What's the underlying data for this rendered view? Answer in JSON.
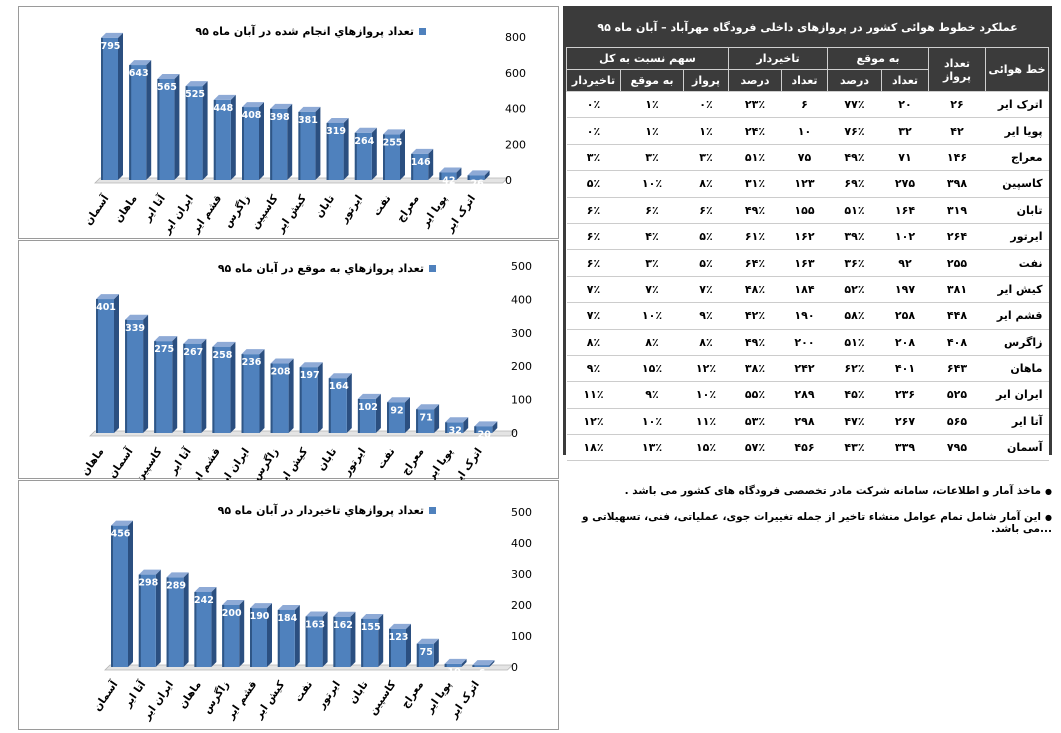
{
  "chart_data": [
    {
      "type": "bar",
      "title": "تعداد پروازهاي انجام شده در آبان ماه ۹۵",
      "categories": [
        "آسمان",
        "ماهان",
        "آتا ایر",
        "ایران ایر",
        "قشم ایر",
        "زاگرس",
        "کاسپین",
        "کیش ایر",
        "تابان",
        "ایرتور",
        "نفت",
        "معراج",
        "پویا ایر",
        "اترک ایر"
      ],
      "values": [
        795,
        643,
        565,
        525,
        448,
        408,
        398,
        381,
        319,
        264,
        255,
        146,
        42,
        26
      ],
      "value_labels": [
        "795",
        "643",
        "565",
        "525",
        "448",
        "408",
        "398",
        "381",
        "319",
        "264",
        "255",
        "146",
        "42",
        "26"
      ],
      "ylim": [
        0,
        800
      ],
      "yticks": [
        "0",
        "200",
        "400",
        "600",
        "800"
      ]
    },
    {
      "type": "bar",
      "title": "تعداد پروازهاي به موقع در آبان ماه ۹۵",
      "categories": [
        "ماهان",
        "آسمان",
        "کاسپین",
        "آتا ایر",
        "قشم ایر",
        "ایران ایر",
        "زاگرس",
        "کیش ایر",
        "تابان",
        "ایرتور",
        "نفت",
        "معراج",
        "پویا ایر",
        "اترک ایر"
      ],
      "values": [
        401,
        339,
        275,
        267,
        258,
        236,
        208,
        197,
        164,
        102,
        92,
        71,
        32,
        20
      ],
      "value_labels": [
        "401",
        "339",
        "275",
        "267",
        "258",
        "236",
        "208",
        "197",
        "164",
        "102",
        "92",
        "71",
        "32",
        "20"
      ],
      "ylim": [
        0,
        500
      ],
      "yticks": [
        "0",
        "100",
        "200",
        "300",
        "400",
        "500"
      ]
    },
    {
      "type": "bar",
      "title": "تعداد پروازهاي تاخيردار در آبان ماه ۹۵",
      "categories": [
        "آسمان",
        "آتا ایر",
        "ایران ایر",
        "ماهان",
        "زاگرس",
        "قشم ایر",
        "کیش ایر",
        "نفت",
        "ایرتور",
        "تابان",
        "کاسپین",
        "معراج",
        "پویا ایر",
        "اترک ایر"
      ],
      "values": [
        456,
        298,
        289,
        242,
        200,
        190,
        184,
        163,
        162,
        155,
        123,
        75,
        10,
        6
      ],
      "value_labels": [
        "456",
        "298",
        "289",
        "242",
        "200",
        "190",
        "184",
        "163",
        "162",
        "155",
        "123",
        "75",
        "10",
        "6"
      ],
      "ylim": [
        0,
        500
      ],
      "yticks": [
        "0",
        "100",
        "200",
        "300",
        "400",
        "500"
      ]
    }
  ],
  "colors": {
    "bar": "#4f81bd",
    "table_header": "#3b3b3b"
  },
  "table": {
    "title": "عملکرد خطوط هوائی کشور در پروازهای داخلی فرودگاه مهرآباد – آبان ماه ۹۵",
    "group_headers": {
      "airline": "خط هوائی",
      "flights": "تعداد پرواز",
      "on_time": "به موقع",
      "delayed": "تاخیردار",
      "share": "سهم نسبت به کل"
    },
    "sub_headers": {
      "count": "تعداد",
      "percent": "درصد",
      "share_flights": "پرواز",
      "share_on_time": "به موقع",
      "share_delayed": "تاخیردار"
    },
    "rows": [
      [
        "اترک ایر",
        "۲۶",
        "۲۰",
        "۷۷٪",
        "۶",
        "۲۳٪",
        "۰٪",
        "۱٪",
        "۰٪"
      ],
      [
        "پویا ایر",
        "۴۲",
        "۳۲",
        "۷۶٪",
        "۱۰",
        "۲۴٪",
        "۱٪",
        "۱٪",
        "۰٪"
      ],
      [
        "معراج",
        "۱۴۶",
        "۷۱",
        "۴۹٪",
        "۷۵",
        "۵۱٪",
        "۳٪",
        "۳٪",
        "۳٪"
      ],
      [
        "کاسپین",
        "۳۹۸",
        "۲۷۵",
        "۶۹٪",
        "۱۲۳",
        "۳۱٪",
        "۸٪",
        "۱۰٪",
        "۵٪"
      ],
      [
        "تابان",
        "۳۱۹",
        "۱۶۴",
        "۵۱٪",
        "۱۵۵",
        "۴۹٪",
        "۶٪",
        "۶٪",
        "۶٪"
      ],
      [
        "ایرتور",
        "۲۶۴",
        "۱۰۲",
        "۳۹٪",
        "۱۶۲",
        "۶۱٪",
        "۵٪",
        "۴٪",
        "۶٪"
      ],
      [
        "نفت",
        "۲۵۵",
        "۹۲",
        "۳۶٪",
        "۱۶۳",
        "۶۴٪",
        "۵٪",
        "۳٪",
        "۶٪"
      ],
      [
        "کیش ایر",
        "۳۸۱",
        "۱۹۷",
        "۵۲٪",
        "۱۸۴",
        "۴۸٪",
        "۷٪",
        "۷٪",
        "۷٪"
      ],
      [
        "قشم ایر",
        "۴۴۸",
        "۲۵۸",
        "۵۸٪",
        "۱۹۰",
        "۴۲٪",
        "۹٪",
        "۱۰٪",
        "۷٪"
      ],
      [
        "زاگرس",
        "۴۰۸",
        "۲۰۸",
        "۵۱٪",
        "۲۰۰",
        "۴۹٪",
        "۸٪",
        "۸٪",
        "۸٪"
      ],
      [
        "ماهان",
        "۶۴۳",
        "۴۰۱",
        "۶۲٪",
        "۲۴۲",
        "۳۸٪",
        "۱۲٪",
        "۱۵٪",
        "۹٪"
      ],
      [
        "ایران ایر",
        "۵۲۵",
        "۲۳۶",
        "۴۵٪",
        "۲۸۹",
        "۵۵٪",
        "۱۰٪",
        "۹٪",
        "۱۱٪"
      ],
      [
        "آتا ایر",
        "۵۶۵",
        "۲۶۷",
        "۴۷٪",
        "۲۹۸",
        "۵۳٪",
        "۱۱٪",
        "۱۰٪",
        "۱۲٪"
      ],
      [
        "آسمان",
        "۷۹۵",
        "۳۳۹",
        "۴۳٪",
        "۴۵۶",
        "۵۷٪",
        "۱۵٪",
        "۱۳٪",
        "۱۸٪"
      ]
    ]
  },
  "notes": [
    "ماخذ آمار و اطلاعات، سامانه شرکت مادر تخصصی فرودگاه های کشور  می باشد .",
    "این آمار شامل  تمام عوامل منشاء تاخیر از جمله  تغییرات جوی، عملیاتی، فنی، تسهیلاتی و ...می باشد."
  ]
}
